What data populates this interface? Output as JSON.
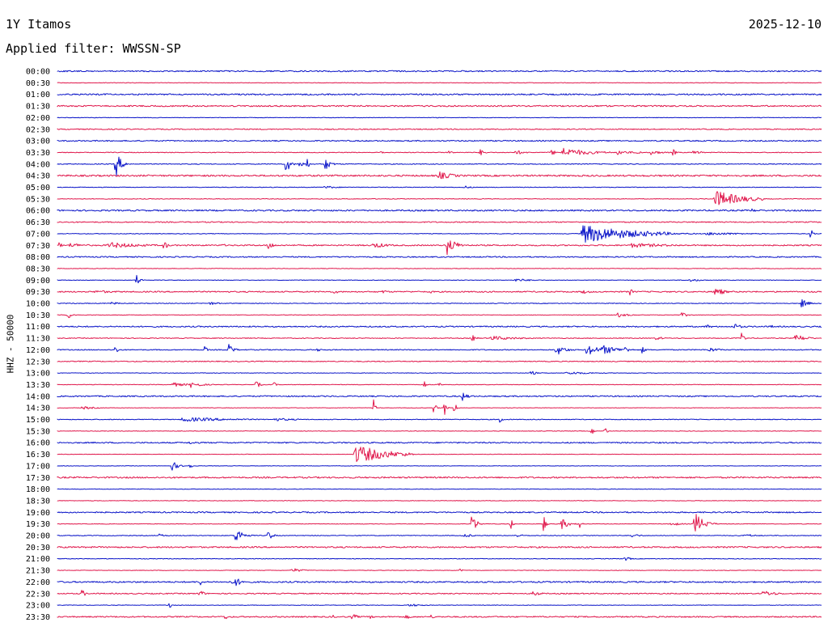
{
  "header": {
    "station": "1Y Itamos",
    "date": "2025-12-10",
    "filter": "Applied filter: WWSSN-SP"
  },
  "channel_label": "HHZ - 50000",
  "colors": {
    "blue": "#0a14c8",
    "red": "#e0184c",
    "text": "#000000"
  },
  "chart_data": {
    "type": "line",
    "title": "1Y Itamos",
    "subtitle": "Applied filter: WWSSN-SP",
    "ylabel": "HHZ - 50000",
    "row_labels": [
      "00:00",
      "00:30",
      "01:00",
      "01:30",
      "02:00",
      "02:30",
      "03:00",
      "03:30",
      "04:00",
      "04:30",
      "05:00",
      "05:30",
      "06:00",
      "06:30",
      "07:00",
      "07:30",
      "08:00",
      "08:30",
      "09:00",
      "09:30",
      "10:00",
      "10:30",
      "11:00",
      "11:30",
      "12:00",
      "12:30",
      "13:00",
      "13:30",
      "14:00",
      "14:30",
      "15:00",
      "15:30",
      "16:00",
      "16:30",
      "17:00",
      "17:30",
      "18:00",
      "18:30",
      "19:00",
      "19:30",
      "20:00",
      "20:30",
      "21:00",
      "21:30",
      "22:00",
      "22:30",
      "23:00",
      "23:30"
    ],
    "row_minutes": 30,
    "color_cycle": [
      "blue",
      "red"
    ],
    "noise": [
      1.4,
      0.6,
      1.6,
      1.5,
      0.6,
      1.1,
      1.3,
      0.8,
      0.9,
      1.8,
      0.7,
      0.7,
      1.6,
      1.2,
      0.7,
      1.4,
      1.3,
      0.6,
      0.6,
      1.4,
      0.8,
      0.6,
      1.4,
      0.9,
      1.0,
      1.0,
      0.6,
      0.6,
      1.4,
      0.5,
      0.8,
      0.6,
      1.4,
      0.5,
      0.5,
      1.6,
      0.6,
      0.6,
      1.4,
      0.6,
      0.8,
      1.6,
      0.7,
      0.6,
      1.6,
      1.2,
      0.6,
      1.4
    ],
    "events": [
      {
        "row": 7,
        "t": 12.7,
        "amp": 4,
        "dur": 0.1
      },
      {
        "row": 7,
        "t": 15.4,
        "amp": 3,
        "dur": 0.2
      },
      {
        "row": 7,
        "t": 16.6,
        "amp": 4,
        "dur": 0.3
      },
      {
        "row": 7,
        "t": 19.4,
        "amp": 5,
        "dur": 0.2
      },
      {
        "row": 7,
        "t": 18.0,
        "amp": 3,
        "dur": 0.5
      },
      {
        "row": 7,
        "t": 19.8,
        "amp": 6,
        "dur": 1.6
      },
      {
        "row": 7,
        "t": 22.0,
        "amp": 3,
        "dur": 0.8
      },
      {
        "row": 7,
        "t": 22.8,
        "amp": 7,
        "dur": 0.1
      },
      {
        "row": 7,
        "t": 23.3,
        "amp": 3,
        "dur": 0.7
      },
      {
        "row": 7,
        "t": 24.2,
        "amp": 6,
        "dur": 0.1
      },
      {
        "row": 7,
        "t": 25.0,
        "amp": 3,
        "dur": 0.4
      },
      {
        "row": 8,
        "t": 2.3,
        "amp": 16,
        "dur": 0.3
      },
      {
        "row": 8,
        "t": 9.0,
        "amp": 12,
        "dur": 0.2
      },
      {
        "row": 8,
        "t": 9.5,
        "amp": 7,
        "dur": 0.2
      },
      {
        "row": 8,
        "t": 9.8,
        "amp": 9,
        "dur": 0.1
      },
      {
        "row": 8,
        "t": 10.5,
        "amp": 9,
        "dur": 0.3
      },
      {
        "row": 9,
        "t": 15.0,
        "amp": 5,
        "dur": 0.9
      },
      {
        "row": 10,
        "t": 10.5,
        "amp": 2,
        "dur": 0.8
      },
      {
        "row": 10,
        "t": 16.0,
        "amp": 2,
        "dur": 0.4
      },
      {
        "row": 11,
        "t": 25.8,
        "amp": 11,
        "dur": 1.6
      },
      {
        "row": 12,
        "t": 27.2,
        "amp": 3,
        "dur": 0.4
      },
      {
        "row": 14,
        "t": 20.6,
        "amp": 12,
        "dur": 3.0
      },
      {
        "row": 14,
        "t": 23.0,
        "amp": 3,
        "dur": 2.0
      },
      {
        "row": 14,
        "t": 25.5,
        "amp": 2,
        "dur": 2.5
      },
      {
        "row": 14,
        "t": 29.6,
        "amp": 9,
        "dur": 0.1
      },
      {
        "row": 15,
        "t": 0.1,
        "amp": 6,
        "dur": 0.1
      },
      {
        "row": 15,
        "t": 0.5,
        "amp": 3,
        "dur": 1.0
      },
      {
        "row": 15,
        "t": 2.0,
        "amp": 4,
        "dur": 2.0
      },
      {
        "row": 15,
        "t": 4.2,
        "amp": 6,
        "dur": 0.2
      },
      {
        "row": 15,
        "t": 6.5,
        "amp": 4,
        "dur": 0.1
      },
      {
        "row": 15,
        "t": 8.3,
        "amp": 9,
        "dur": 0.2
      },
      {
        "row": 15,
        "t": 12.4,
        "amp": 4,
        "dur": 0.9
      },
      {
        "row": 15,
        "t": 15.3,
        "amp": 12,
        "dur": 0.5
      },
      {
        "row": 15,
        "t": 22.5,
        "amp": 3,
        "dur": 2.6
      },
      {
        "row": 18,
        "t": 3.1,
        "amp": 8,
        "dur": 0.2
      },
      {
        "row": 18,
        "t": 18.0,
        "amp": 2,
        "dur": 1.0
      },
      {
        "row": 18,
        "t": 24.8,
        "amp": 2,
        "dur": 0.8
      },
      {
        "row": 19,
        "t": 1.5,
        "amp": 2,
        "dur": 1.5
      },
      {
        "row": 19,
        "t": 10.9,
        "amp": 3,
        "dur": 0.2
      },
      {
        "row": 19,
        "t": 12.8,
        "amp": 3,
        "dur": 0.3
      },
      {
        "row": 19,
        "t": 14.6,
        "amp": 3,
        "dur": 0.2
      },
      {
        "row": 19,
        "t": 20.6,
        "amp": 3,
        "dur": 0.5
      },
      {
        "row": 19,
        "t": 22.5,
        "amp": 7,
        "dur": 0.1
      },
      {
        "row": 19,
        "t": 25.8,
        "amp": 7,
        "dur": 0.5
      },
      {
        "row": 20,
        "t": 29.2,
        "amp": 6,
        "dur": 0.4
      },
      {
        "row": 20,
        "t": 2.1,
        "amp": 2,
        "dur": 0.6
      },
      {
        "row": 20,
        "t": 6.0,
        "amp": 2,
        "dur": 0.6
      },
      {
        "row": 21,
        "t": 0.4,
        "amp": 5,
        "dur": 0.3
      },
      {
        "row": 21,
        "t": 22.0,
        "amp": 3,
        "dur": 0.6
      },
      {
        "row": 21,
        "t": 24.5,
        "amp": 3,
        "dur": 0.4
      },
      {
        "row": 22,
        "t": 25.5,
        "amp": 3,
        "dur": 0.3
      },
      {
        "row": 22,
        "t": 26.6,
        "amp": 4,
        "dur": 0.4
      },
      {
        "row": 22,
        "t": 28.0,
        "amp": 2,
        "dur": 0.4
      },
      {
        "row": 23,
        "t": 16.3,
        "amp": 5,
        "dur": 0.2
      },
      {
        "row": 23,
        "t": 17.0,
        "amp": 3,
        "dur": 1.6
      },
      {
        "row": 23,
        "t": 23.5,
        "amp": 3,
        "dur": 0.4
      },
      {
        "row": 23,
        "t": 26.9,
        "amp": 11,
        "dur": 0.1
      },
      {
        "row": 23,
        "t": 29.0,
        "amp": 5,
        "dur": 0.6
      },
      {
        "row": 24,
        "t": 2.3,
        "amp": 7,
        "dur": 0.1
      },
      {
        "row": 24,
        "t": 5.8,
        "amp": 7,
        "dur": 0.1
      },
      {
        "row": 24,
        "t": 6.7,
        "amp": 8,
        "dur": 0.3
      },
      {
        "row": 24,
        "t": 10.2,
        "amp": 2,
        "dur": 0.5
      },
      {
        "row": 24,
        "t": 19.6,
        "amp": 7,
        "dur": 0.5
      },
      {
        "row": 24,
        "t": 20.8,
        "amp": 8,
        "dur": 0.6
      },
      {
        "row": 24,
        "t": 21.4,
        "amp": 6,
        "dur": 1.0
      },
      {
        "row": 24,
        "t": 22.3,
        "amp": 6,
        "dur": 0.2
      },
      {
        "row": 24,
        "t": 23.0,
        "amp": 7,
        "dur": 0.1
      },
      {
        "row": 24,
        "t": 25.6,
        "amp": 3,
        "dur": 0.6
      },
      {
        "row": 26,
        "t": 18.6,
        "amp": 3,
        "dur": 0.3
      },
      {
        "row": 26,
        "t": 20.0,
        "amp": 2,
        "dur": 1.5
      },
      {
        "row": 27,
        "t": 4.5,
        "amp": 3,
        "dur": 0.8
      },
      {
        "row": 27,
        "t": 5.2,
        "amp": 4,
        "dur": 0.7
      },
      {
        "row": 27,
        "t": 7.8,
        "amp": 6,
        "dur": 0.2
      },
      {
        "row": 27,
        "t": 8.5,
        "amp": 5,
        "dur": 0.1
      },
      {
        "row": 27,
        "t": 14.4,
        "amp": 5,
        "dur": 0.1
      },
      {
        "row": 27,
        "t": 15.0,
        "amp": 3,
        "dur": 0.1
      },
      {
        "row": 28,
        "t": 15.9,
        "amp": 7,
        "dur": 0.1
      },
      {
        "row": 28,
        "t": 16.1,
        "amp": 5,
        "dur": 0.2
      },
      {
        "row": 29,
        "t": 1.0,
        "amp": 2,
        "dur": 0.8
      },
      {
        "row": 29,
        "t": 12.4,
        "amp": 13,
        "dur": 0.1
      },
      {
        "row": 29,
        "t": 14.8,
        "amp": 10,
        "dur": 0.1
      },
      {
        "row": 29,
        "t": 15.2,
        "amp": 10,
        "dur": 0.1
      },
      {
        "row": 29,
        "t": 15.6,
        "amp": 8,
        "dur": 0.1
      },
      {
        "row": 30,
        "t": 4.9,
        "amp": 3,
        "dur": 3.0
      },
      {
        "row": 30,
        "t": 8.5,
        "amp": 2,
        "dur": 1.5
      },
      {
        "row": 30,
        "t": 17.4,
        "amp": 7,
        "dur": 0.1
      },
      {
        "row": 31,
        "t": 21.0,
        "amp": 4,
        "dur": 0.1
      },
      {
        "row": 31,
        "t": 21.5,
        "amp": 7,
        "dur": 0.1
      },
      {
        "row": 32,
        "t": 5.2,
        "amp": 2,
        "dur": 0.7
      },
      {
        "row": 33,
        "t": 11.7,
        "amp": 12,
        "dur": 1.9
      },
      {
        "row": 34,
        "t": 4.5,
        "amp": 7,
        "dur": 0.3
      },
      {
        "row": 34,
        "t": 5.2,
        "amp": 6,
        "dur": 0.1
      },
      {
        "row": 39,
        "t": 16.3,
        "amp": 15,
        "dur": 0.2
      },
      {
        "row": 39,
        "t": 17.8,
        "amp": 8,
        "dur": 0.1
      },
      {
        "row": 39,
        "t": 19.1,
        "amp": 14,
        "dur": 0.1
      },
      {
        "row": 39,
        "t": 19.8,
        "amp": 7,
        "dur": 0.4
      },
      {
        "row": 39,
        "t": 20.5,
        "amp": 10,
        "dur": 0.1
      },
      {
        "row": 39,
        "t": 24.1,
        "amp": 3,
        "dur": 0.5
      },
      {
        "row": 39,
        "t": 25.0,
        "amp": 16,
        "dur": 0.5
      },
      {
        "row": 40,
        "t": 4.0,
        "amp": 2,
        "dur": 0.5
      },
      {
        "row": 40,
        "t": 7.0,
        "amp": 11,
        "dur": 0.4
      },
      {
        "row": 40,
        "t": 8.3,
        "amp": 8,
        "dur": 0.2
      },
      {
        "row": 40,
        "t": 16.0,
        "amp": 3,
        "dur": 0.4
      },
      {
        "row": 40,
        "t": 18.0,
        "amp": 2,
        "dur": 0.6
      },
      {
        "row": 40,
        "t": 22.5,
        "amp": 3,
        "dur": 0.5
      },
      {
        "row": 40,
        "t": 27.0,
        "amp": 2,
        "dur": 0.8
      },
      {
        "row": 42,
        "t": 22.3,
        "amp": 3,
        "dur": 0.3
      },
      {
        "row": 43,
        "t": 9.2,
        "amp": 3,
        "dur": 0.6
      },
      {
        "row": 43,
        "t": 15.8,
        "amp": 2,
        "dur": 0.2
      },
      {
        "row": 44,
        "t": 5.6,
        "amp": 6,
        "dur": 0.1
      },
      {
        "row": 44,
        "t": 6.9,
        "amp": 7,
        "dur": 0.5
      },
      {
        "row": 45,
        "t": 1.0,
        "amp": 8,
        "dur": 0.1
      },
      {
        "row": 45,
        "t": 5.6,
        "amp": 6,
        "dur": 0.2
      },
      {
        "row": 45,
        "t": 18.7,
        "amp": 4,
        "dur": 0.4
      },
      {
        "row": 45,
        "t": 27.7,
        "amp": 4,
        "dur": 0.8
      },
      {
        "row": 46,
        "t": 4.4,
        "amp": 5,
        "dur": 0.1
      },
      {
        "row": 46,
        "t": 13.8,
        "amp": 2,
        "dur": 0.8
      },
      {
        "row": 47,
        "t": 6.6,
        "amp": 5,
        "dur": 0.1
      },
      {
        "row": 47,
        "t": 10.8,
        "amp": 4,
        "dur": 0.1
      },
      {
        "row": 47,
        "t": 11.6,
        "amp": 4,
        "dur": 0.3
      },
      {
        "row": 47,
        "t": 12.3,
        "amp": 4,
        "dur": 0.1
      },
      {
        "row": 47,
        "t": 13.7,
        "amp": 3,
        "dur": 0.3
      },
      {
        "row": 47,
        "t": 14.7,
        "amp": 4,
        "dur": 0.1
      }
    ]
  }
}
